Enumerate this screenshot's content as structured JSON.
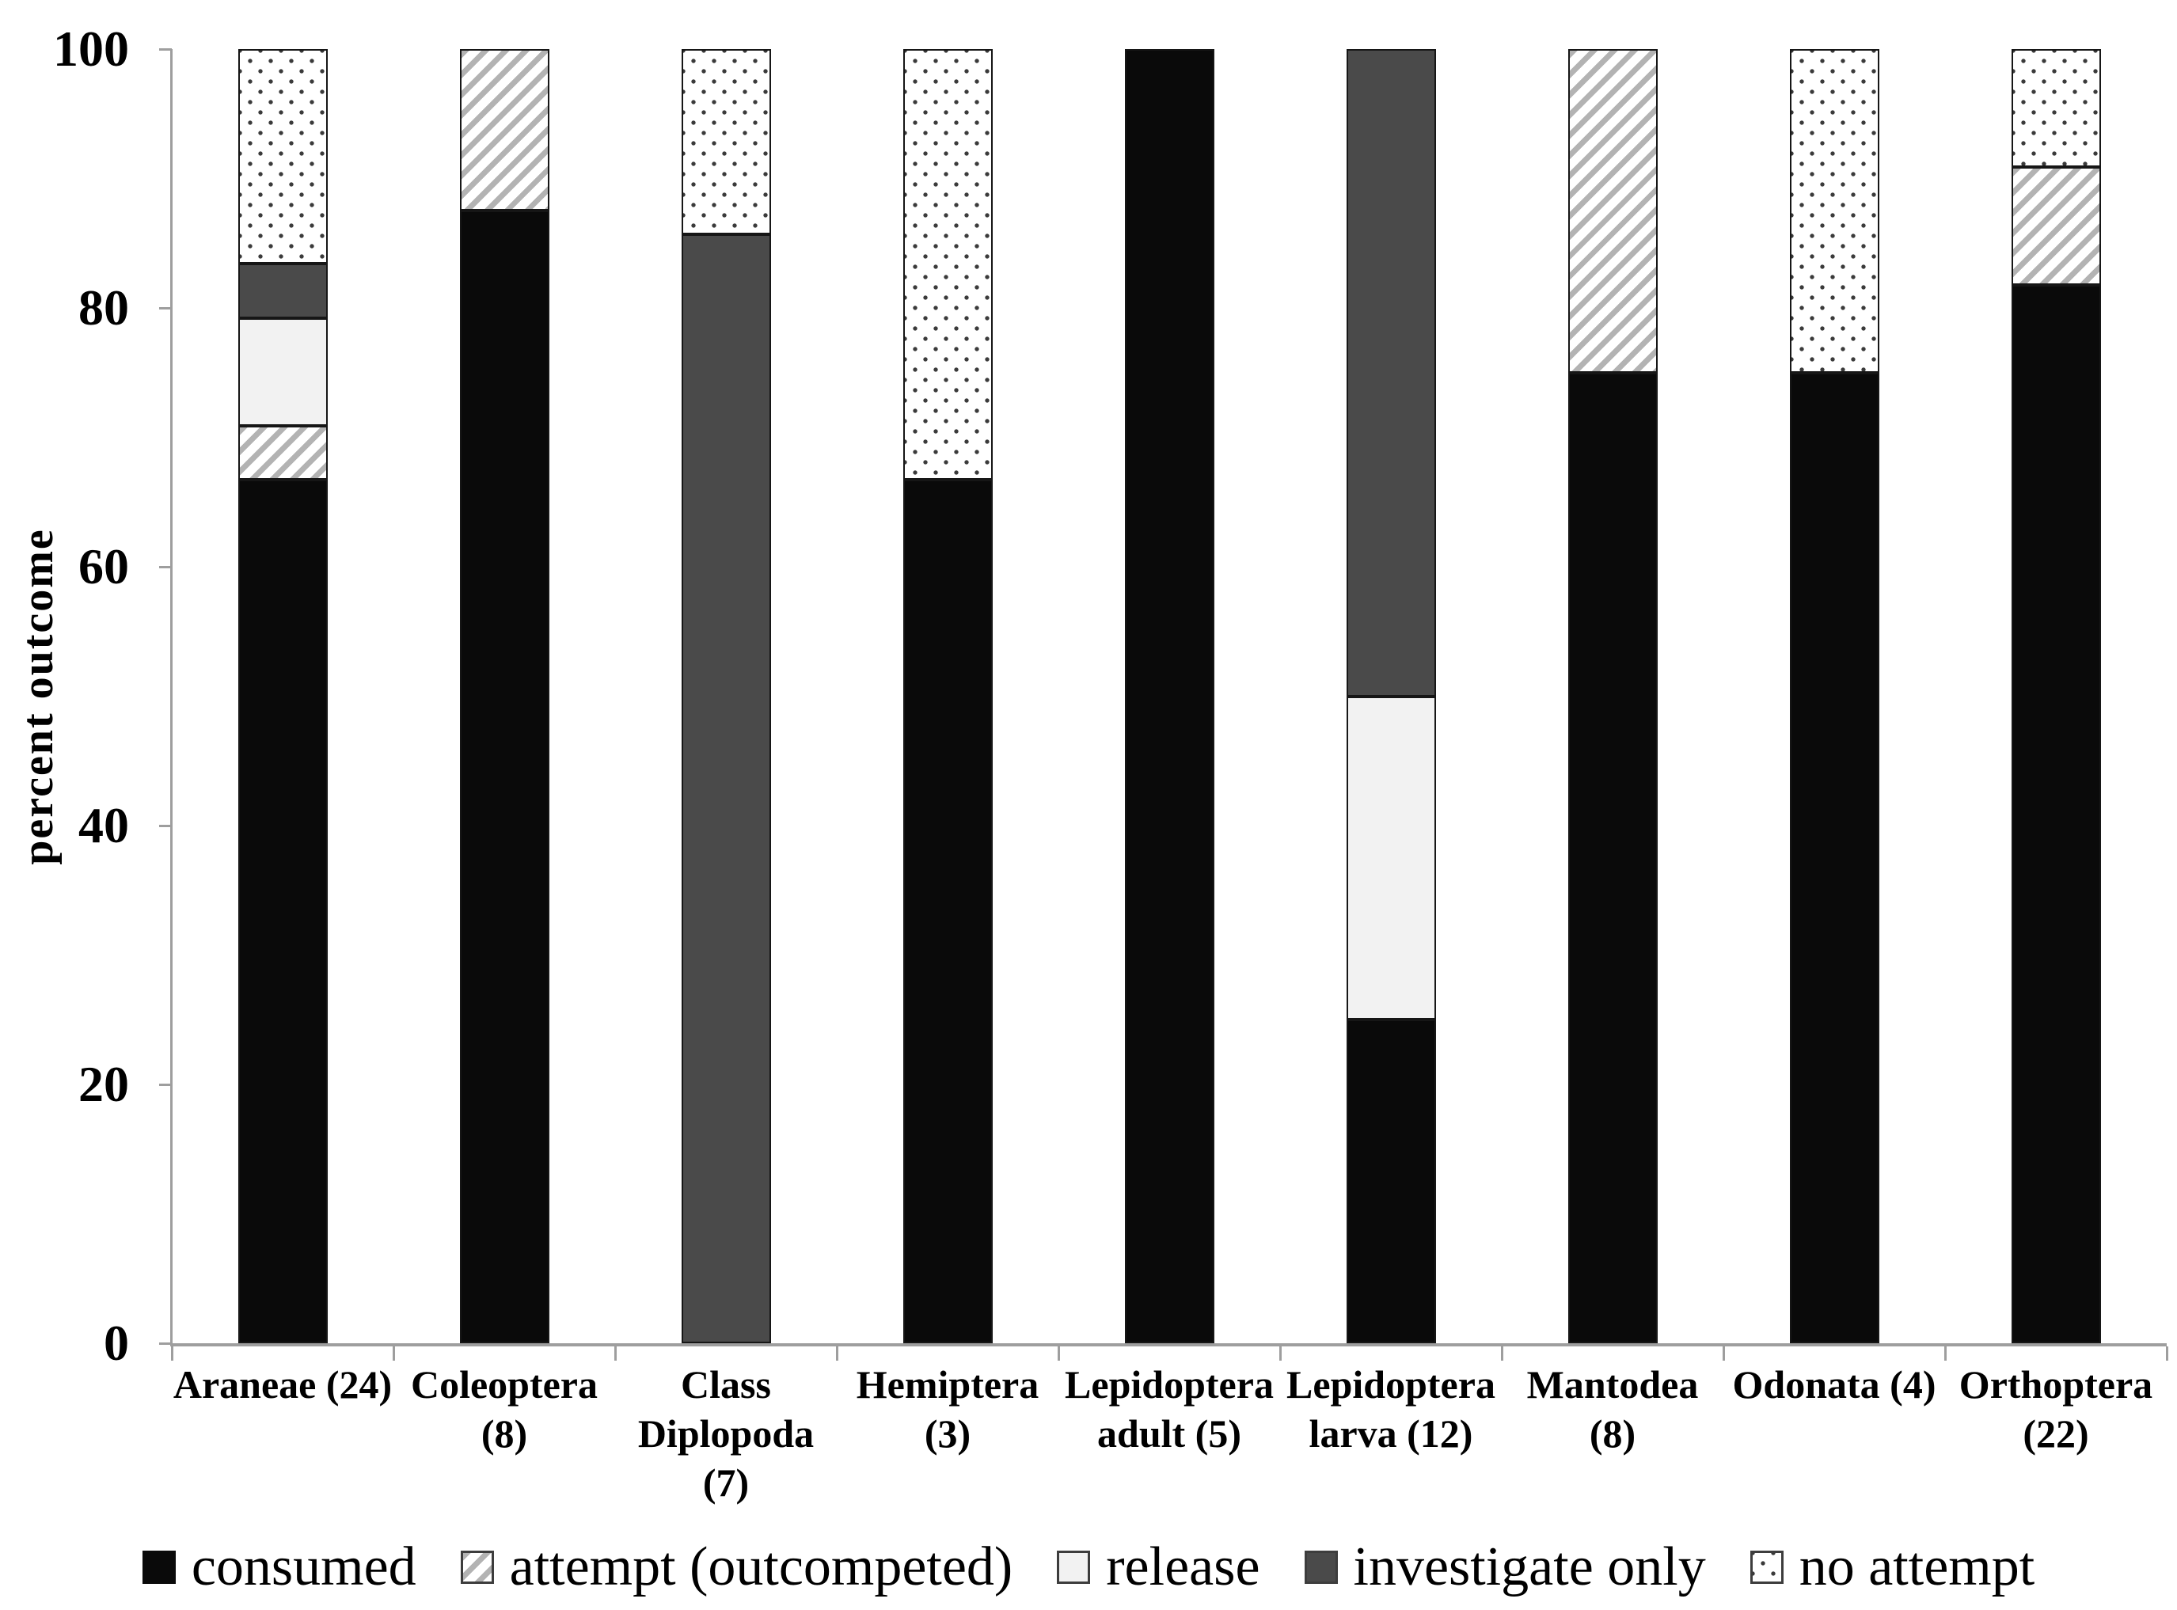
{
  "chart_data": {
    "type": "bar",
    "stacked": true,
    "orientation": "vertical",
    "title": "",
    "xlabel": "",
    "ylabel": "percent outcome",
    "ylim": [
      0,
      100
    ],
    "yticks": [
      0,
      20,
      40,
      60,
      80,
      100
    ],
    "grid": false,
    "legend_position": "bottom",
    "categories": [
      {
        "label": "Araneae (24)",
        "lines": [
          "Araneae (24)"
        ]
      },
      {
        "label": "Coleoptera (8)",
        "lines": [
          "Coleoptera",
          "(8)"
        ]
      },
      {
        "label": "Class Diplopoda (7)",
        "lines": [
          "Class",
          "Diplopoda",
          "(7)"
        ]
      },
      {
        "label": "Hemiptera (3)",
        "lines": [
          "Hemiptera",
          "(3)"
        ]
      },
      {
        "label": "Lepidoptera adult (5)",
        "lines": [
          "Lepidoptera",
          "adult (5)"
        ]
      },
      {
        "label": "Lepidoptera larva (12)",
        "lines": [
          "Lepidoptera",
          "larva (12)"
        ]
      },
      {
        "label": "Mantodea (8)",
        "lines": [
          "Mantodea",
          "(8)"
        ]
      },
      {
        "label": "Odonata (4)",
        "lines": [
          "Odonata (4)"
        ]
      },
      {
        "label": "Orthoptera (22)",
        "lines": [
          "Orthoptera",
          "(22)"
        ]
      }
    ],
    "series": [
      {
        "name": "consumed",
        "pattern": "solid-black",
        "color": "#0a0a0a",
        "values": [
          66.7,
          87.5,
          0,
          66.7,
          100,
          25,
          75,
          75,
          81.8
        ]
      },
      {
        "name": "attempt (outcompeted)",
        "pattern": "diagonal-hatch",
        "color": "#b3b3b3",
        "values": [
          4.2,
          12.5,
          0,
          0,
          0,
          0,
          25,
          0,
          9.1
        ]
      },
      {
        "name": "release",
        "pattern": "light-gray",
        "color": "#f2f2f2",
        "values": [
          8.3,
          0,
          0,
          0,
          0,
          25,
          0,
          0,
          0
        ]
      },
      {
        "name": "investigate only",
        "pattern": "dark-gray",
        "color": "#4a4a4a",
        "values": [
          4.2,
          0,
          85.7,
          0,
          0,
          50,
          0,
          0,
          0
        ]
      },
      {
        "name": "no attempt",
        "pattern": "dotted",
        "color": "#3a3a3a",
        "values": [
          16.7,
          0,
          14.3,
          33.3,
          0,
          0,
          0,
          25,
          9.1
        ]
      }
    ],
    "style": {
      "axis_color": "#9e9e9e",
      "bar_outline_color": "#161616",
      "text_color": "#000000",
      "background": "#ffffff"
    }
  }
}
